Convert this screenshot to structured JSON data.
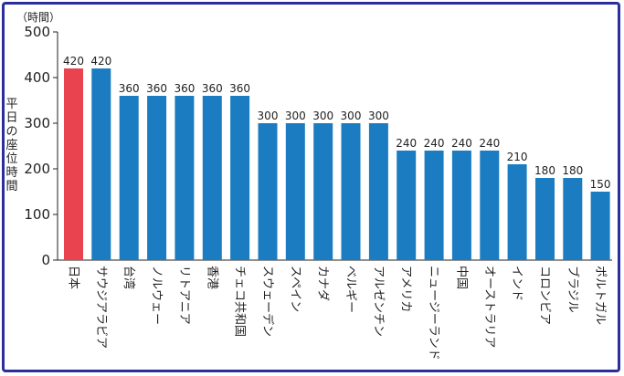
{
  "chart_data": {
    "type": "bar",
    "unit_label": "（時間）",
    "ylabel": "平日の座位時間",
    "ylim": [
      0,
      500
    ],
    "yticks": [
      0,
      100,
      200,
      300,
      400,
      500
    ],
    "grid": false,
    "legend": "none",
    "categories": [
      "日本",
      "サウジアラビア",
      "台湾",
      "ノルウェー",
      "リトアニア",
      "香港",
      "チェコ共和国",
      "スウェーデン",
      "スペイン",
      "カナダ",
      "ベルギー",
      "アルゼンチン",
      "アメリカ",
      "ニュージーランド",
      "中国",
      "オーストラリア",
      "インド",
      "コロンビア",
      "ブラジル",
      "ポルトガル"
    ],
    "values": [
      420,
      420,
      360,
      360,
      360,
      360,
      360,
      300,
      300,
      300,
      300,
      300,
      240,
      240,
      240,
      240,
      210,
      180,
      180,
      150
    ],
    "highlight_index": 0,
    "colors": {
      "highlight": "#e8434f",
      "bar": "#1b7cc2",
      "frame": "#2b2f9e"
    }
  }
}
